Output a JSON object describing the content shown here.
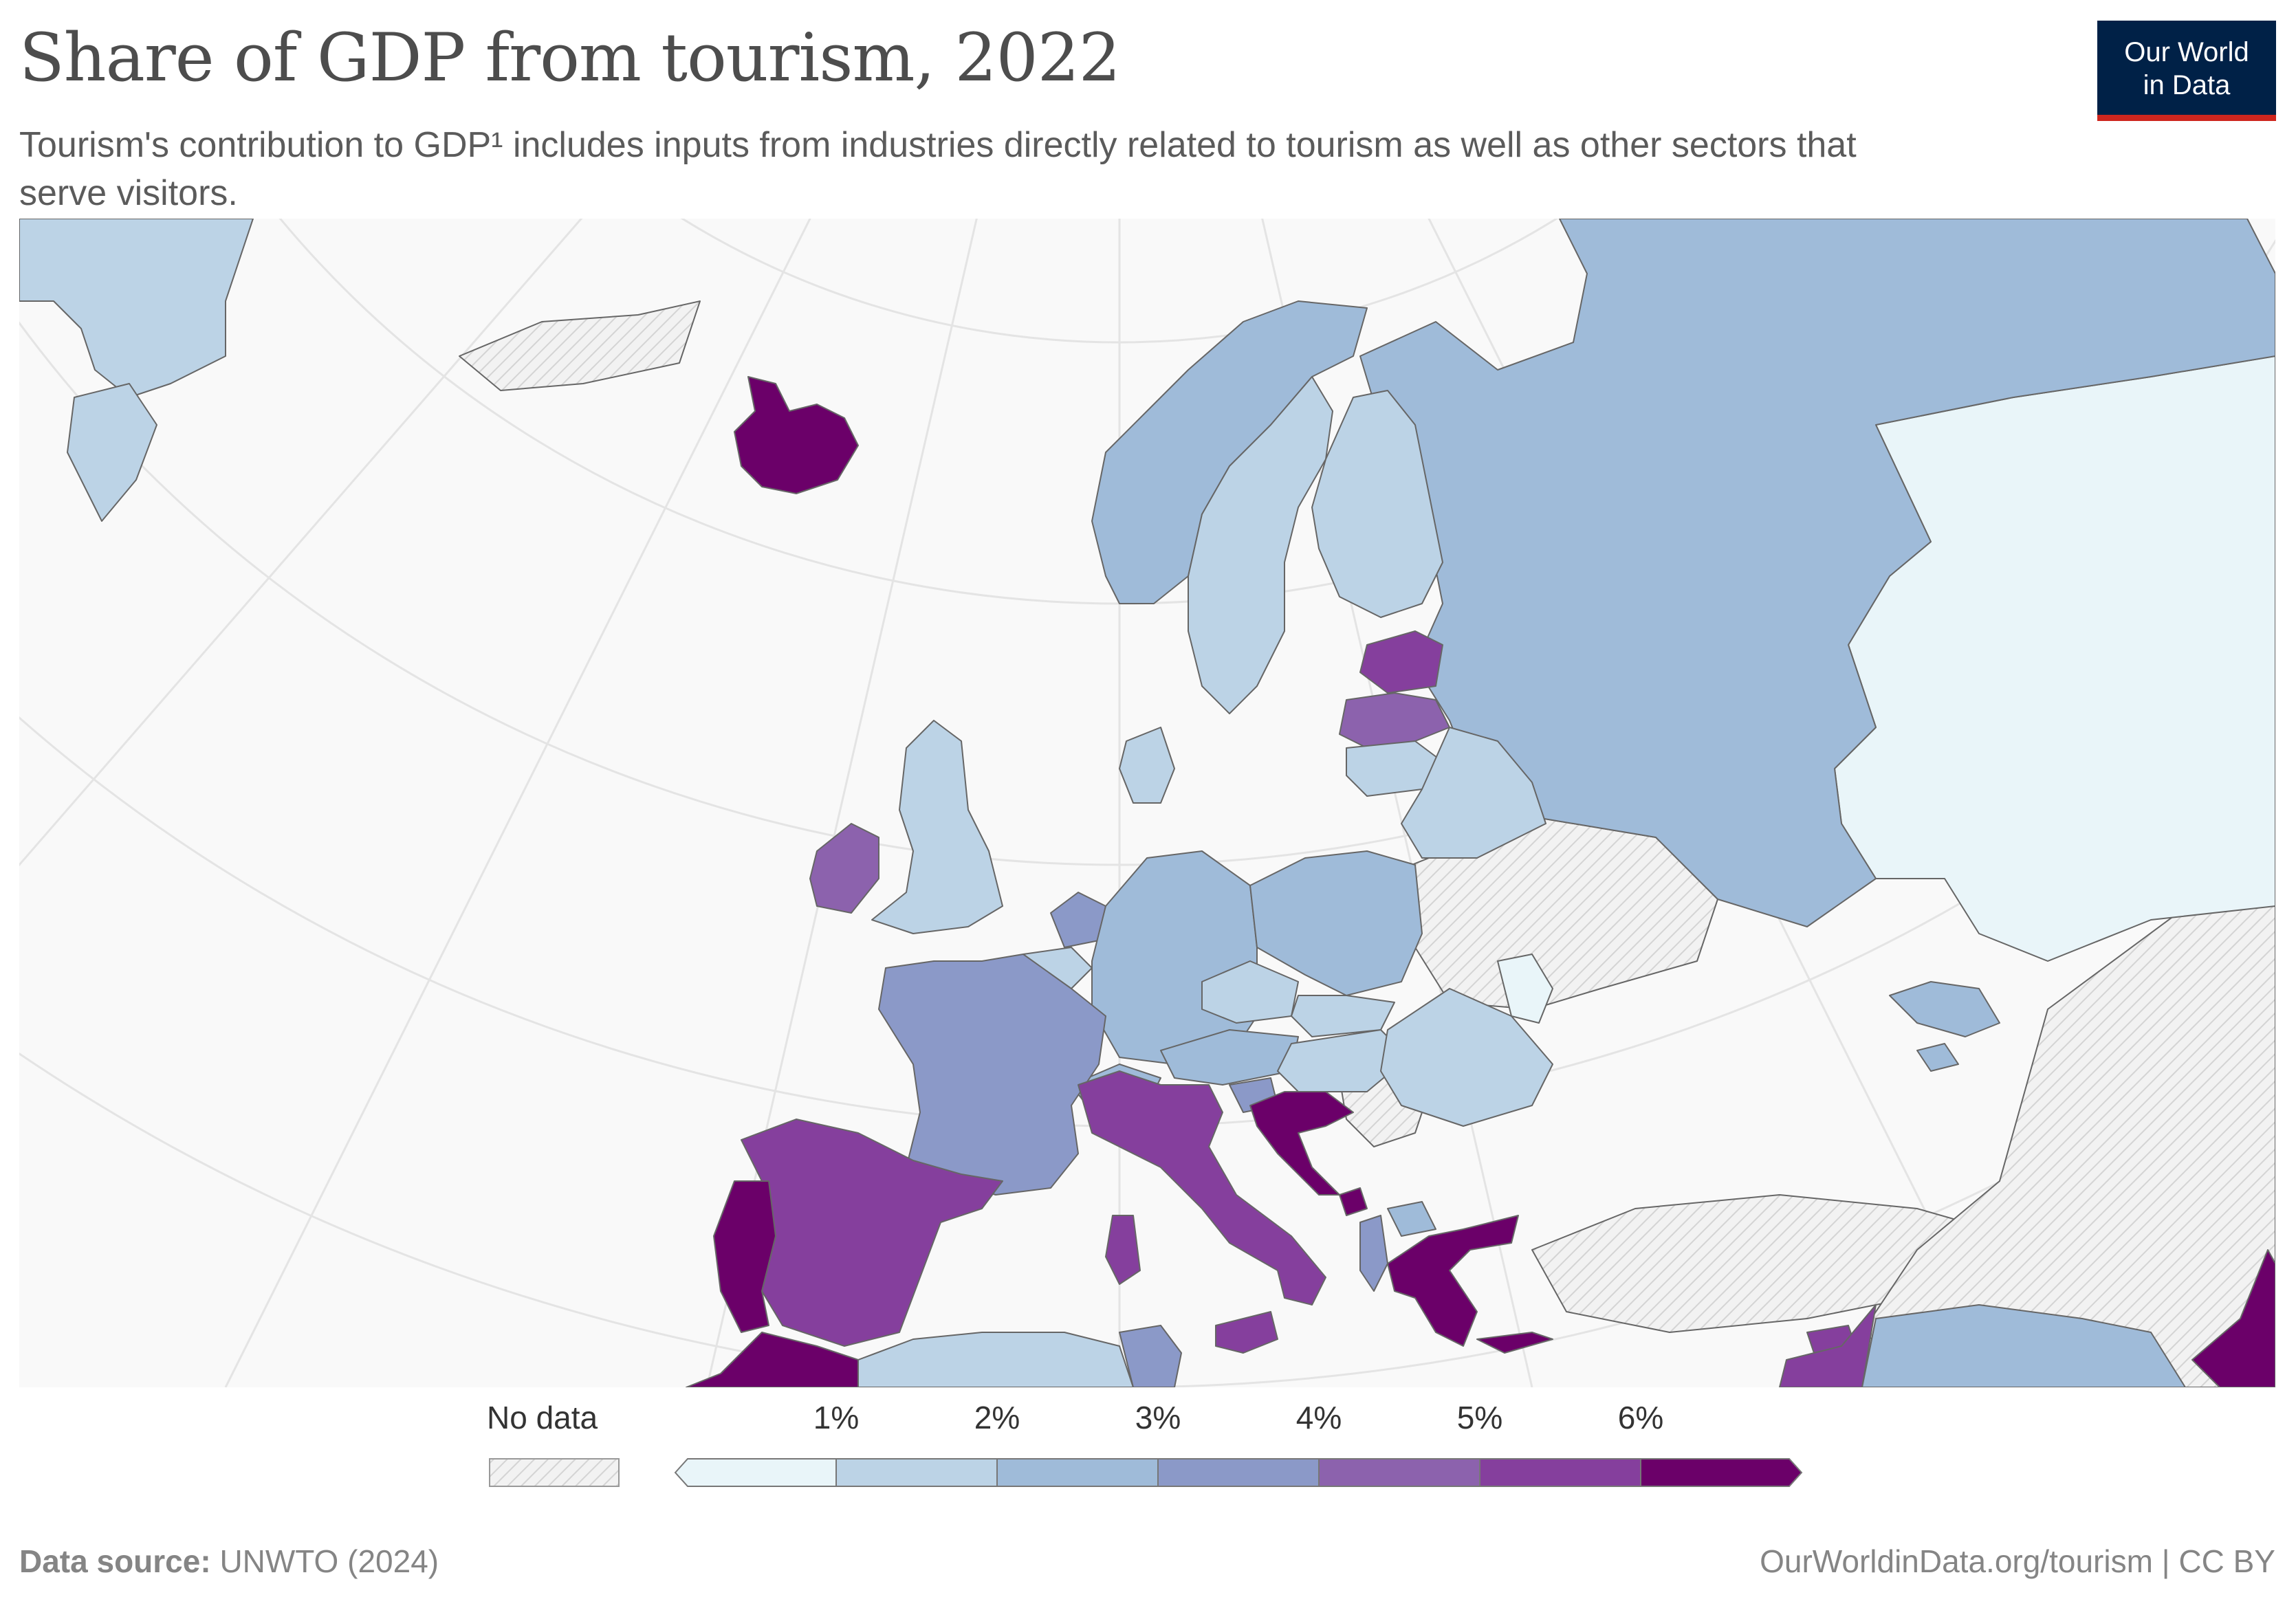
{
  "title": "Share of GDP from tourism, 2022",
  "subtitle": "Tourism's contribution to  GDP¹ includes inputs from industries directly related to tourism as well as other sectors that serve visitors.",
  "logo": {
    "line1": "Our World",
    "line2": "in Data"
  },
  "legend": {
    "no_data_label": "No data",
    "ticks": [
      "1%",
      "2%",
      "3%",
      "4%",
      "5%",
      "6%"
    ],
    "colors": [
      "#e9f5f9",
      "#bcd3e6",
      "#9fbbd9",
      "#8b99c8",
      "#8c62ad",
      "#853f9d",
      "#6b0069"
    ]
  },
  "colors": {
    "no_data_fill": "#ececec",
    "no_data_hatch": "#cfcfcf",
    "background_land": "#f7f7f7",
    "border": "#555555",
    "graticule": "#e3e3e3"
  },
  "footer": {
    "source_label": "Data source:",
    "source_value": "UNWTO (2024)",
    "url": "OurWorldinData.org/tourism",
    "license": "CC BY"
  },
  "countries": [
    {
      "name": "Iceland",
      "bin": 6
    },
    {
      "name": "Greenland",
      "bin": 1
    },
    {
      "name": "Norway",
      "bin": 2
    },
    {
      "name": "Sweden",
      "bin": 1
    },
    {
      "name": "Finland",
      "bin": 1
    },
    {
      "name": "Russia",
      "bin": 2
    },
    {
      "name": "Kazakhstan",
      "bin": 0
    },
    {
      "name": "Estonia",
      "bin": 5
    },
    {
      "name": "Latvia",
      "bin": 4
    },
    {
      "name": "Lithuania",
      "bin": 1
    },
    {
      "name": "Belarus",
      "bin": 1
    },
    {
      "name": "United Kingdom",
      "bin": 1
    },
    {
      "name": "Ireland",
      "bin": 4
    },
    {
      "name": "Denmark",
      "bin": 1
    },
    {
      "name": "Netherlands",
      "bin": 3
    },
    {
      "name": "Belgium",
      "bin": 1
    },
    {
      "name": "Germany",
      "bin": 2
    },
    {
      "name": "Poland",
      "bin": 2
    },
    {
      "name": "Czechia",
      "bin": 1
    },
    {
      "name": "Slovakia",
      "bin": 1
    },
    {
      "name": "Austria",
      "bin": 2
    },
    {
      "name": "Hungary",
      "bin": 1
    },
    {
      "name": "Romania",
      "bin": 1
    },
    {
      "name": "Moldova",
      "bin": 0
    },
    {
      "name": "France",
      "bin": 3
    },
    {
      "name": "Switzerland",
      "bin": 2
    },
    {
      "name": "Italy",
      "bin": 5
    },
    {
      "name": "Slovenia",
      "bin": 3
    },
    {
      "name": "Croatia",
      "bin": 6
    },
    {
      "name": "Montenegro",
      "bin": 6
    },
    {
      "name": "Albania",
      "bin": 3
    },
    {
      "name": "North Macedonia",
      "bin": 2
    },
    {
      "name": "Greece",
      "bin": 6
    },
    {
      "name": "Spain",
      "bin": 5
    },
    {
      "name": "Portugal",
      "bin": 6
    },
    {
      "name": "Morocco",
      "bin": 6
    },
    {
      "name": "Algeria",
      "bin": 1
    },
    {
      "name": "Tunisia",
      "bin": 3
    },
    {
      "name": "Cyprus",
      "bin": 6
    },
    {
      "name": "Georgia",
      "bin": 2
    },
    {
      "name": "Armenia",
      "bin": 2
    },
    {
      "name": "Jordan",
      "bin": 5
    },
    {
      "name": "Saudi Arabia",
      "bin": 2
    },
    {
      "name": "Oman",
      "bin": 6
    }
  ]
}
